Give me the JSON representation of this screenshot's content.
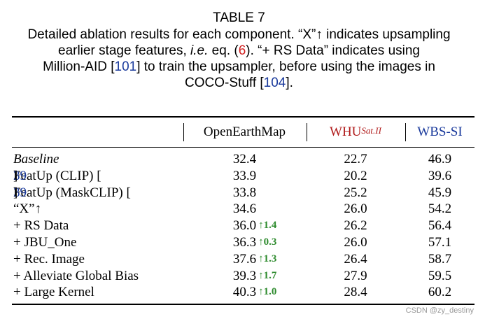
{
  "caption": {
    "title": "TABLE 7",
    "line1": "Detailed ablation results for each component. “X”↑ indicates upsampling",
    "line2a": "earlier stage features, ",
    "line2b": "i.e.",
    "line2c": " eq. (",
    "line2ref": "6",
    "line2d": "). “+ RS Data” indicates using",
    "line3a": "Million-AID [",
    "line3ref": "101",
    "line3b": "] to train the upsampler, before using the images in",
    "line4a": "COCO-Stuff [",
    "line4ref": "104",
    "line4b": "]."
  },
  "table": {
    "headers": {
      "col1": "OpenEarthMap",
      "col2": "WHU",
      "col2_sup": "Sat.II",
      "col3": "WBS-SI"
    },
    "rows": [
      {
        "name": "Baseline",
        "ref": "",
        "v1": "32.4",
        "gain": "",
        "v2": "22.7",
        "v3": "46.9"
      },
      {
        "name": "FeatUp (CLIP) [",
        "ref": "39",
        "v1": "33.9",
        "gain": "",
        "v2": "20.2",
        "v3": "39.6"
      },
      {
        "name": "FeatUp (MaskCLIP) [",
        "ref": "39",
        "v1": "33.8",
        "gain": "",
        "v2": "25.2",
        "v3": "45.9"
      },
      {
        "name": "“X”↑",
        "ref": "",
        "v1": "34.6",
        "gain": "",
        "v2": "26.0",
        "v3": "54.2"
      },
      {
        "name": "+ RS Data",
        "ref": "",
        "v1": "36.0",
        "gain": "↑1.4",
        "v2": "26.2",
        "v3": "56.4"
      },
      {
        "name": "+ JBU_One",
        "ref": "",
        "v1": "36.3",
        "gain": "↑0.3",
        "v2": "26.0",
        "v3": "57.1"
      },
      {
        "name": "+ Rec. Image",
        "ref": "",
        "v1": "37.6",
        "gain": "↑1.3",
        "v2": "26.4",
        "v3": "58.7"
      },
      {
        "name": "+ Alleviate Global Bias",
        "ref": "",
        "v1": "39.3",
        "gain": "↑1.7",
        "v2": "27.9",
        "v3": "59.5"
      },
      {
        "name": "+ Large Kernel",
        "ref": "",
        "v1": "40.3",
        "gain": "↑1.0",
        "v2": "28.4",
        "v3": "60.2"
      }
    ]
  },
  "watermark": "CSDN @zy_destiny"
}
